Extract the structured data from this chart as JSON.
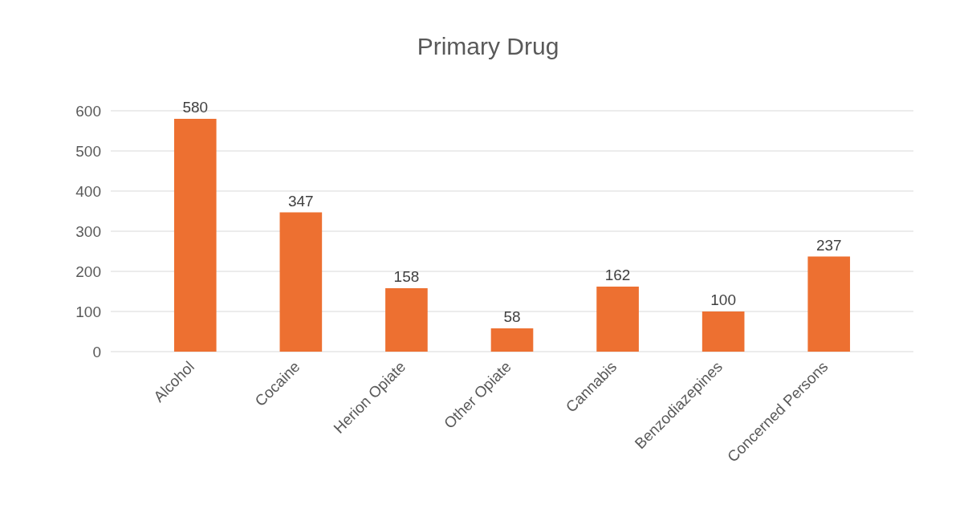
{
  "chart_data": {
    "type": "bar",
    "title": "Primary Drug",
    "categories": [
      "Alcohol",
      "Cocaine",
      "Herion Opiate",
      "Other Opiate",
      "Cannabis",
      "Benzodiazepines",
      "Concerned Persons"
    ],
    "values": [
      580,
      347,
      158,
      58,
      162,
      100,
      237
    ],
    "color": "#ed7031",
    "ylim": [
      0,
      600
    ],
    "yticks": [
      0,
      100,
      200,
      300,
      400,
      500,
      600
    ],
    "grid": "y",
    "data_labels": true
  }
}
